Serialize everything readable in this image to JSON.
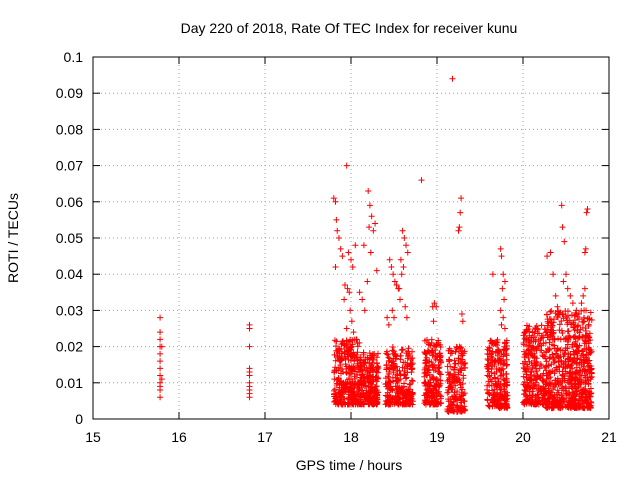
{
  "chart_data": {
    "type": "scatter",
    "title": "Day 220 of 2018, Rate Of TEC Index for receiver kunu",
    "xlabel": "GPS time / hours",
    "ylabel": "ROTI / TECUs",
    "xlim": [
      15,
      21
    ],
    "ylim": [
      0,
      0.1
    ],
    "x_ticks": [
      "15",
      "16",
      "17",
      "18",
      "19",
      "20",
      "21"
    ],
    "y_ticks": [
      "0",
      "0.01",
      "0.02",
      "0.03",
      "0.04",
      "0.05",
      "0.06",
      "0.07",
      "0.08",
      "0.09",
      "0.1"
    ],
    "grid": true,
    "marker": "+",
    "color": "#ff0000",
    "series": [
      {
        "points": [
          [
            15.78,
            0.028
          ],
          [
            15.78,
            0.024
          ],
          [
            15.78,
            0.022
          ],
          [
            15.78,
            0.02
          ],
          [
            15.78,
            0.018
          ],
          [
            15.78,
            0.016
          ],
          [
            15.78,
            0.014
          ],
          [
            15.78,
            0.012
          ],
          [
            15.78,
            0.01
          ],
          [
            15.78,
            0.009
          ],
          [
            15.78,
            0.008
          ],
          [
            15.78,
            0.006
          ],
          [
            15.8,
            0.02
          ],
          [
            15.8,
            0.011
          ],
          [
            16.82,
            0.026
          ],
          [
            16.82,
            0.025
          ],
          [
            16.82,
            0.02
          ],
          [
            16.82,
            0.014
          ],
          [
            16.82,
            0.013
          ],
          [
            16.82,
            0.012
          ],
          [
            16.82,
            0.01
          ],
          [
            16.82,
            0.009
          ],
          [
            16.82,
            0.008
          ],
          [
            16.82,
            0.007
          ],
          [
            16.82,
            0.006
          ],
          [
            17.8,
            0.061
          ],
          [
            17.82,
            0.06
          ],
          [
            17.83,
            0.055
          ],
          [
            17.84,
            0.052
          ],
          [
            17.86,
            0.05
          ],
          [
            17.88,
            0.047
          ],
          [
            17.9,
            0.045
          ],
          [
            17.82,
            0.042
          ],
          [
            17.95,
            0.07
          ],
          [
            17.97,
            0.046
          ],
          [
            18.0,
            0.044
          ],
          [
            18.02,
            0.042
          ],
          [
            18.05,
            0.048
          ],
          [
            17.93,
            0.037
          ],
          [
            17.96,
            0.036
          ],
          [
            17.98,
            0.035
          ],
          [
            17.92,
            0.033
          ],
          [
            17.99,
            0.03
          ],
          [
            18.01,
            0.027
          ],
          [
            17.95,
            0.025
          ],
          [
            18.03,
            0.024
          ],
          [
            18.06,
            0.022
          ],
          [
            18.1,
            0.035
          ],
          [
            18.13,
            0.033
          ],
          [
            18.16,
            0.03
          ],
          [
            18.2,
            0.063
          ],
          [
            18.22,
            0.059
          ],
          [
            18.24,
            0.056
          ],
          [
            18.21,
            0.053
          ],
          [
            18.26,
            0.052
          ],
          [
            18.28,
            0.054
          ],
          [
            18.23,
            0.046
          ],
          [
            18.3,
            0.041
          ],
          [
            18.19,
            0.038
          ],
          [
            18.15,
            0.048
          ],
          [
            18.45,
            0.044
          ],
          [
            18.47,
            0.042
          ],
          [
            18.49,
            0.04
          ],
          [
            18.51,
            0.038
          ],
          [
            18.53,
            0.037
          ],
          [
            18.55,
            0.036
          ],
          [
            18.48,
            0.03
          ],
          [
            18.5,
            0.028
          ],
          [
            18.42,
            0.028
          ],
          [
            18.44,
            0.026
          ],
          [
            18.6,
            0.052
          ],
          [
            18.62,
            0.05
          ],
          [
            18.64,
            0.048
          ],
          [
            18.66,
            0.046
          ],
          [
            18.58,
            0.044
          ],
          [
            18.61,
            0.042
          ],
          [
            18.59,
            0.04
          ],
          [
            18.56,
            0.036
          ],
          [
            18.57,
            0.033
          ],
          [
            18.63,
            0.031
          ],
          [
            18.65,
            0.028
          ],
          [
            18.82,
            0.066
          ],
          [
            18.95,
            0.031
          ],
          [
            18.97,
            0.032
          ],
          [
            18.99,
            0.031
          ],
          [
            18.96,
            0.027
          ],
          [
            19.18,
            0.094
          ],
          [
            19.28,
            0.061
          ],
          [
            19.27,
            0.057
          ],
          [
            19.26,
            0.053
          ],
          [
            19.25,
            0.052
          ],
          [
            19.29,
            0.029
          ],
          [
            19.3,
            0.027
          ],
          [
            19.65,
            0.04
          ],
          [
            19.74,
            0.047
          ],
          [
            19.75,
            0.045
          ],
          [
            19.77,
            0.04
          ],
          [
            19.79,
            0.038
          ],
          [
            19.76,
            0.036
          ],
          [
            19.78,
            0.033
          ],
          [
            19.74,
            0.03
          ],
          [
            19.77,
            0.028
          ],
          [
            19.75,
            0.026
          ],
          [
            19.79,
            0.025
          ],
          [
            20.28,
            0.045
          ],
          [
            20.32,
            0.046
          ],
          [
            20.35,
            0.04
          ],
          [
            20.38,
            0.034
          ],
          [
            20.4,
            0.031
          ],
          [
            20.45,
            0.059
          ],
          [
            20.46,
            0.053
          ],
          [
            20.48,
            0.049
          ],
          [
            20.5,
            0.04
          ],
          [
            20.47,
            0.038
          ],
          [
            20.52,
            0.036
          ],
          [
            20.55,
            0.034
          ],
          [
            20.58,
            0.032
          ],
          [
            20.62,
            0.03
          ],
          [
            20.7,
            0.034
          ],
          [
            20.72,
            0.036
          ],
          [
            20.74,
            0.057
          ],
          [
            20.75,
            0.058
          ],
          [
            20.73,
            0.047
          ],
          [
            20.72,
            0.046
          ],
          [
            20.68,
            0.032
          ],
          [
            20.71,
            0.03
          ]
        ],
        "bands": [
          {
            "x": [
              17.8,
              18.1
            ],
            "y": [
              0.004,
              0.022
            ],
            "count": 300
          },
          {
            "x": [
              18.1,
              18.32
            ],
            "y": [
              0.004,
              0.019
            ],
            "count": 220
          },
          {
            "x": [
              18.4,
              18.72
            ],
            "y": [
              0.004,
              0.02
            ],
            "count": 260
          },
          {
            "x": [
              18.85,
              19.05
            ],
            "y": [
              0.004,
              0.022
            ],
            "count": 200
          },
          {
            "x": [
              19.12,
              19.33
            ],
            "y": [
              0.002,
              0.02
            ],
            "count": 170
          },
          {
            "x": [
              19.58,
              19.82
            ],
            "y": [
              0.003,
              0.022
            ],
            "count": 230
          },
          {
            "x": [
              20.0,
              20.25
            ],
            "y": [
              0.004,
              0.026
            ],
            "count": 250
          },
          {
            "x": [
              20.25,
              20.55
            ],
            "y": [
              0.003,
              0.03
            ],
            "count": 320
          },
          {
            "x": [
              20.55,
              20.8
            ],
            "y": [
              0.003,
              0.03
            ],
            "count": 330
          }
        ]
      }
    ]
  }
}
